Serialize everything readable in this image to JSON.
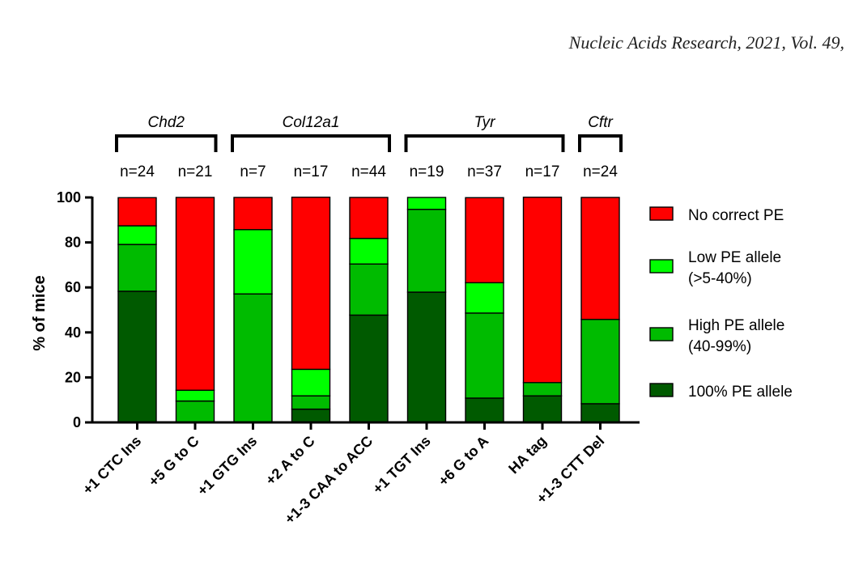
{
  "header": {
    "journal": "Nucleic Acids Research, 2021, Vol. 49,"
  },
  "chart_data": {
    "type": "bar",
    "stacked": true,
    "title": "",
    "xlabel": "",
    "ylabel": "% of mice",
    "ylim": [
      0,
      100
    ],
    "yticks": [
      0,
      20,
      40,
      60,
      80,
      100
    ],
    "categories": [
      "+1 CTC Ins",
      "+5 G to C",
      "+1 GTG Ins",
      "+2 A to C",
      "+1-3 CAA to ACC",
      "+1 TGT Ins",
      "+6 G to A",
      "HA tag",
      "+1-3 CTT Del"
    ],
    "n_labels": [
      "n=24",
      "n=21",
      "n=7",
      "n=17",
      "n=44",
      "n=19",
      "n=37",
      "n=17",
      "n=24"
    ],
    "groups": [
      {
        "name": "Chd2",
        "start": 0,
        "end": 1
      },
      {
        "name": "Col12a1",
        "start": 2,
        "end": 4
      },
      {
        "name": "Tyr",
        "start": 5,
        "end": 7
      },
      {
        "name": "Cftr",
        "start": 8,
        "end": 8
      }
    ],
    "series": [
      {
        "name": "100% PE allele",
        "color": "#005a00",
        "values": [
          58.3,
          0,
          0,
          5.9,
          47.7,
          57.9,
          10.8,
          11.8,
          8.3
        ]
      },
      {
        "name": "High PE allele\n(40-99%)",
        "color": "#00bb00",
        "values": [
          20.8,
          9.5,
          57.1,
          5.9,
          22.7,
          36.8,
          37.8,
          5.9,
          37.5
        ]
      },
      {
        "name": "Low PE allele\n(>5-40%)",
        "color": "#00ff00",
        "values": [
          8.3,
          4.8,
          28.6,
          11.8,
          11.4,
          5.3,
          13.5,
          0,
          0
        ]
      },
      {
        "name": "No correct PE",
        "color": "#ff0000",
        "values": [
          12.5,
          85.7,
          14.3,
          76.5,
          18.2,
          0,
          37.8,
          82.4,
          54.2
        ]
      }
    ],
    "legend_order": [
      3,
      2,
      1,
      0
    ],
    "legend": "right"
  }
}
